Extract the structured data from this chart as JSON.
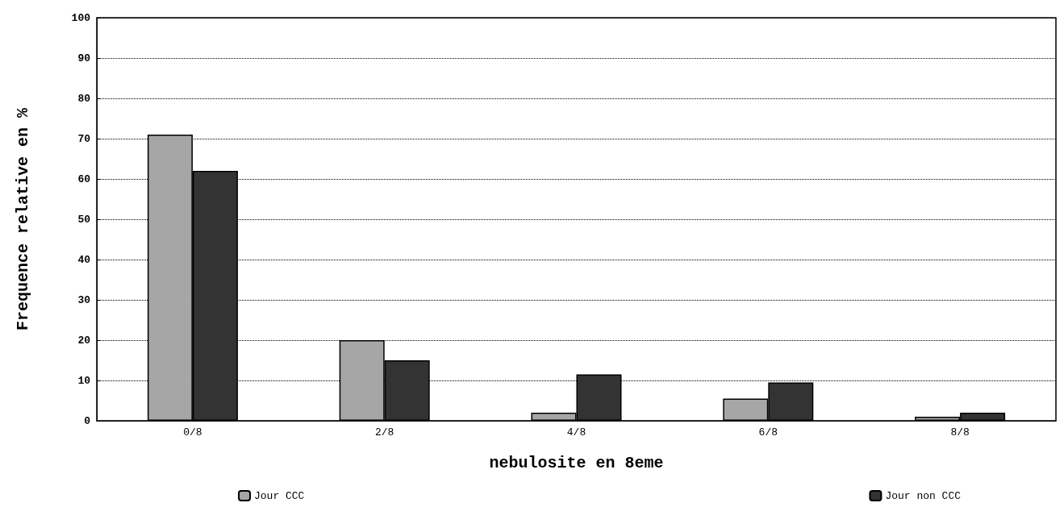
{
  "chart_data": {
    "type": "bar",
    "xlabel": "nebulosite en 8eme",
    "ylabel": "Frequence relative en %",
    "categories": [
      "0/8",
      "2/8",
      "4/8",
      "6/8",
      "8/8"
    ],
    "series": [
      {
        "name": "Jour CCC",
        "color": "#a6a6a6",
        "values": [
          71,
          20,
          2,
          5.5,
          1
        ]
      },
      {
        "name": "Jour non CCC",
        "color": "#333333",
        "values": [
          62,
          15,
          11.5,
          9.5,
          2
        ]
      }
    ],
    "ylim": [
      0,
      100
    ],
    "yticks": [
      0,
      10,
      20,
      30,
      40,
      50,
      60,
      70,
      80,
      90,
      100
    ],
    "grid": "y",
    "legend": "bottom"
  }
}
